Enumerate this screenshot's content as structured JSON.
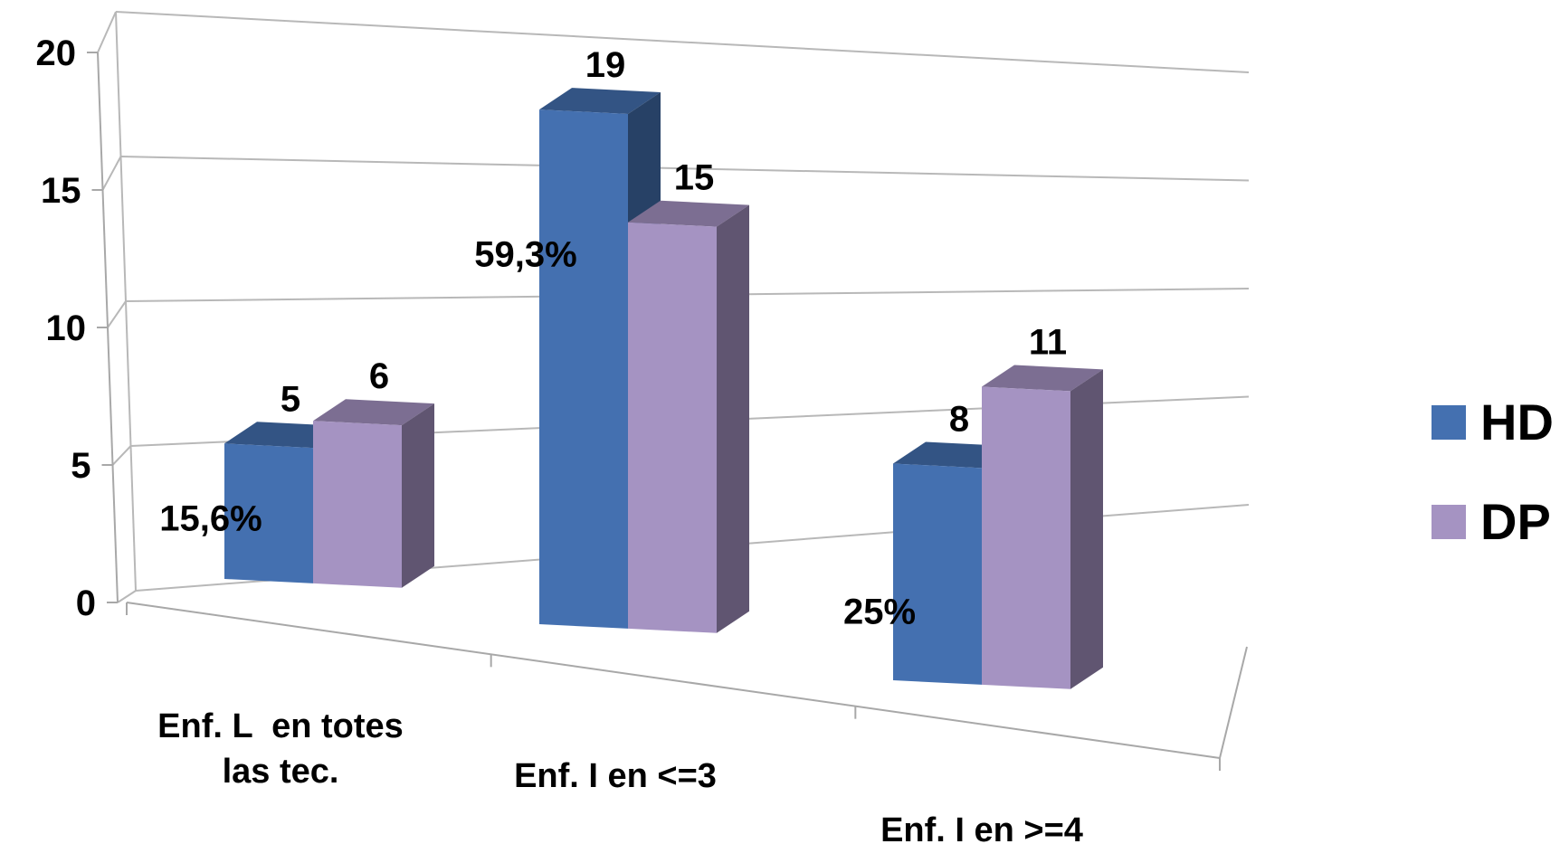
{
  "chart_data": {
    "type": "bar",
    "title": "",
    "xlabel": "",
    "ylabel": "",
    "ylim": [
      0,
      20
    ],
    "yticks": [
      "0",
      "5",
      "10",
      "15",
      "20"
    ],
    "grid": true,
    "legend_position": "right",
    "categories": [
      [
        "Enf. L  en totes",
        "las tec."
      ],
      [
        "Enf. I en <=3"
      ],
      [
        "Enf. I en >=4"
      ]
    ],
    "series": [
      {
        "name": "HD",
        "values": [
          5,
          19,
          8
        ],
        "labels": [
          "5",
          "19",
          "8"
        ],
        "color": "#4470b0"
      },
      {
        "name": "DP",
        "values": [
          6,
          15,
          11
        ],
        "labels": [
          "6",
          "15",
          "11"
        ],
        "color": "#a593c2"
      }
    ],
    "annotations": [
      "15,6%",
      "59,3%",
      "25%"
    ]
  }
}
